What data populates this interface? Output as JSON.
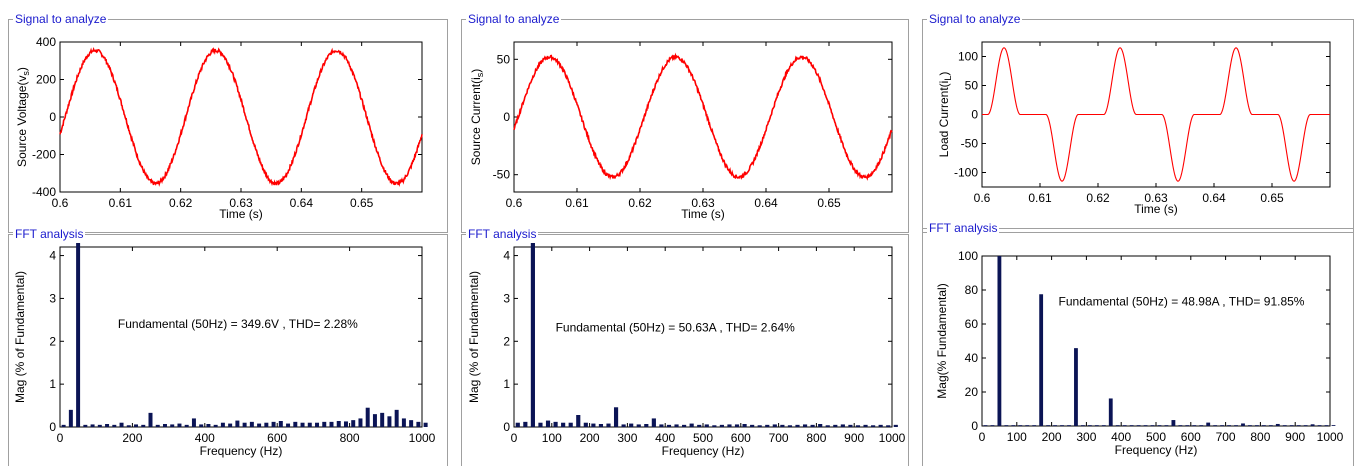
{
  "panels": [
    {
      "signal_title": "Signal to analyze",
      "fft_title": "FFT analysis",
      "time_chart": {
        "type": "line",
        "ylabel_main": "Source Voltage(v",
        "ylabel_sub": "s",
        "ylabel_end": ")",
        "xlabel": "Time (s)",
        "xlim": [
          0.6,
          0.66
        ],
        "ylim": [
          -400,
          400
        ],
        "xticks": [
          "0.6",
          "0.61",
          "0.62",
          "0.63",
          "0.64",
          "0.65"
        ],
        "yticks": [
          "400",
          "200",
          "0",
          "-200",
          "-400"
        ],
        "series": [
          {
            "waveform": "sine",
            "amplitude": 355,
            "frequency_hz": 50,
            "phase_deg": -15,
            "noise": 10,
            "color": "#ff0000"
          }
        ]
      },
      "fft_chart": {
        "type": "bar",
        "ylabel": "Mag (% of Fundamental)",
        "xlabel": "Frequency (Hz)",
        "annotation": "Fundamental (50Hz) = 349.6V , THD= 2.28%",
        "xlim": [
          0,
          1000
        ],
        "ylim": [
          0,
          4.2
        ],
        "xticks": [
          "0",
          "200",
          "400",
          "600",
          "800",
          "1000"
        ],
        "yticks": [
          "4",
          "3",
          "2",
          "1",
          "0"
        ],
        "bar_color": "#0b1455",
        "harmonic_spacing_hz": 20,
        "fundamental_display": 4.4,
        "values": [
          0.05,
          0.4,
          0.05,
          0.06,
          0.05,
          0.07,
          0.05,
          0.1,
          0.04,
          0.06,
          0.05,
          0.33,
          0.05,
          0.07,
          0.06,
          0.08,
          0.05,
          0.2,
          0.06,
          0.07,
          0.05,
          0.1,
          0.08,
          0.15,
          0.1,
          0.12,
          0.08,
          0.1,
          0.12,
          0.14,
          0.08,
          0.12,
          0.1,
          0.1,
          0.1,
          0.12,
          0.12,
          0.14,
          0.13,
          0.16,
          0.2,
          0.45,
          0.3,
          0.33,
          0.25,
          0.4,
          0.2,
          0.16,
          0.12,
          0.1
        ]
      }
    },
    {
      "signal_title": "Signal to analyze",
      "fft_title": "FFT analysis",
      "time_chart": {
        "type": "line",
        "ylabel_main": "Source Current(i",
        "ylabel_sub": "s",
        "ylabel_end": ")",
        "xlabel": "Time (s)",
        "xlim": [
          0.6,
          0.66
        ],
        "ylim": [
          -65,
          65
        ],
        "xticks": [
          "0.6",
          "0.61",
          "0.62",
          "0.63",
          "0.64",
          "0.65"
        ],
        "yticks": [
          "50",
          "0",
          "-50"
        ],
        "series": [
          {
            "waveform": "sine",
            "amplitude": 52,
            "frequency_hz": 50,
            "phase_deg": -12,
            "noise": 1.5,
            "color": "#ff0000"
          }
        ]
      },
      "fft_chart": {
        "type": "bar",
        "ylabel": "Mag (% of Fundamental)",
        "xlabel": "Frequency (Hz)",
        "annotation": "Fundamental (50Hz) = 50.63A , THD= 2.64%",
        "xlim": [
          0,
          1000
        ],
        "ylim": [
          0,
          4.2
        ],
        "xticks": [
          "0",
          "100",
          "200",
          "300",
          "400",
          "500",
          "600",
          "700",
          "800",
          "900",
          "1000"
        ],
        "yticks": [
          "4",
          "3",
          "2",
          "1",
          "0"
        ],
        "bar_color": "#0b1455",
        "harmonic_spacing_hz": 20,
        "fundamental_display": 4.4,
        "values": [
          0.1,
          0.12,
          0.1,
          0.15,
          0.12,
          0.1,
          0.1,
          0.28,
          0.1,
          0.08,
          0.07,
          0.08,
          0.46,
          0.06,
          0.08,
          0.06,
          0.07,
          0.2,
          0.06,
          0.05,
          0.06,
          0.05,
          0.08,
          0.05,
          0.06,
          0.04,
          0.05,
          0.06,
          0.06,
          0.07,
          0.05,
          0.04,
          0.05,
          0.06,
          0.05,
          0.04,
          0.05,
          0.06,
          0.05,
          0.07,
          0.04,
          0.05,
          0.06,
          0.05,
          0.04,
          0.05,
          0.04,
          0.05,
          0.04,
          0.05
        ]
      }
    },
    {
      "signal_title": "Signal to analyze",
      "fft_title": "FFT analysis",
      "time_chart": {
        "type": "line",
        "ylabel_main": "Load Current(i",
        "ylabel_sub": "L",
        "ylabel_end": ")",
        "xlabel": "Time (s)",
        "xlim": [
          0.6,
          0.66
        ],
        "ylim": [
          -125,
          125
        ],
        "xticks": [
          "0.6",
          "0.61",
          "0.62",
          "0.63",
          "0.64",
          "0.65"
        ],
        "yticks": [
          "100",
          "50",
          "0",
          "-50",
          "-100"
        ],
        "series": [
          {
            "waveform": "pulse",
            "amplitude": 115,
            "first_peak": 0.6038,
            "pulse_width": 0.0028,
            "period": 0.02,
            "color": "#ff0000"
          }
        ]
      },
      "fft_chart": {
        "type": "bar",
        "ylabel": "Mag(% Fundamental)",
        "xlabel": "Frequency (Hz)",
        "annotation": "Fundamental (50Hz) = 48.98A , THD= 91.85%",
        "xlim": [
          0,
          1000
        ],
        "ylim": [
          0,
          100
        ],
        "xticks": [
          "0",
          "100",
          "200",
          "300",
          "400",
          "500",
          "600",
          "700",
          "800",
          "900",
          "1000"
        ],
        "yticks": [
          "100",
          "80",
          "60",
          "40",
          "20",
          "0"
        ],
        "bar_color": "#0b1455",
        "harmonic_spacing_hz": 20,
        "fundamental_display": 100,
        "values": [
          0.5,
          0.5,
          0.5,
          0.5,
          0.5,
          0.5,
          0.5,
          77.5,
          0.5,
          0.5,
          0.5,
          0.5,
          45.8,
          0.5,
          0.5,
          0.5,
          0.5,
          16.2,
          0.5,
          0.5,
          0.5,
          0.5,
          0.5,
          0.5,
          0.5,
          0.5,
          3.5,
          0.5,
          0.5,
          0.5,
          0.5,
          2.0,
          0.5,
          0.5,
          0.5,
          0.5,
          1.5,
          0.5,
          0.5,
          0.5,
          0.5,
          1.2,
          0.5,
          0.5,
          0.5,
          0.5,
          1.0,
          0.5,
          0.5,
          0.5
        ]
      }
    }
  ]
}
